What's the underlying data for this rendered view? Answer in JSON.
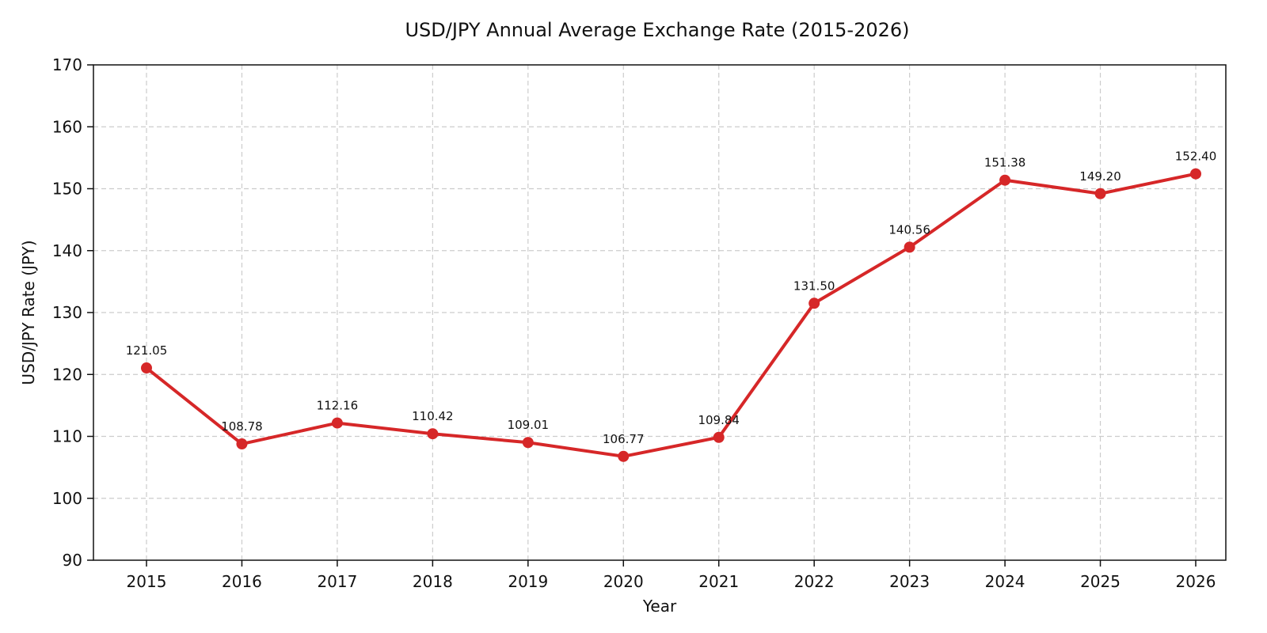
{
  "chart_data": {
    "type": "line",
    "title": "USD/JPY Annual Average Exchange Rate (2015-2026)",
    "xlabel": "Year",
    "ylabel": "USD/JPY Rate (JPY)",
    "categories": [
      "2015",
      "2016",
      "2017",
      "2018",
      "2019",
      "2020",
      "2021",
      "2022",
      "2023",
      "2024",
      "2025",
      "2026"
    ],
    "series": [
      {
        "values": [
          121.05,
          108.78,
          112.16,
          110.42,
          109.01,
          106.77,
          109.84,
          131.5,
          140.56,
          151.38,
          149.2,
          152.4
        ],
        "data_labels": [
          "121.05",
          "108.78",
          "112.16",
          "110.42",
          "109.01",
          "106.77",
          "109.84",
          "131.50",
          "140.56",
          "151.38",
          "149.20",
          "152.40"
        ],
        "color": "#d62728",
        "marker": "circle"
      }
    ],
    "ylim": [
      90,
      170
    ],
    "y_ticks": [
      "90",
      "100",
      "110",
      "120",
      "130",
      "140",
      "150",
      "160",
      "170"
    ],
    "grid": true,
    "grid_style": "dashed",
    "legend": false
  },
  "colors": {
    "line": "#d62728",
    "grid": "#cccccc",
    "axis": "#111111",
    "background": "#ffffff"
  }
}
